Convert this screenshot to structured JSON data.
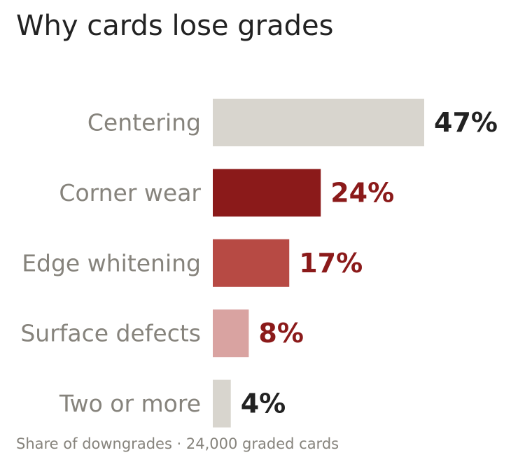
{
  "chart_data": {
    "type": "bar",
    "orientation": "horizontal",
    "title": "Why cards lose grades",
    "footnote": "Share of downgrades · 24,000 graded cards",
    "categories": [
      "Centering",
      "Corner wear",
      "Edge whitening",
      "Surface defects",
      "Two or more"
    ],
    "values": [
      47,
      24,
      17,
      8,
      4
    ],
    "value_labels": [
      "47%",
      "24%",
      "17%",
      "8%",
      "4%"
    ],
    "unit": "%",
    "xlabel": "",
    "ylabel": "",
    "grid": false,
    "bar_colors": [
      "#d8d5ce",
      "#8b1a1a",
      "#b74a44",
      "#d9a3a1",
      "#d8d5ce"
    ],
    "label_colors": [
      "#222222",
      "#8b1a1a",
      "#8b1a1a",
      "#8b1a1a",
      "#222222"
    ]
  }
}
